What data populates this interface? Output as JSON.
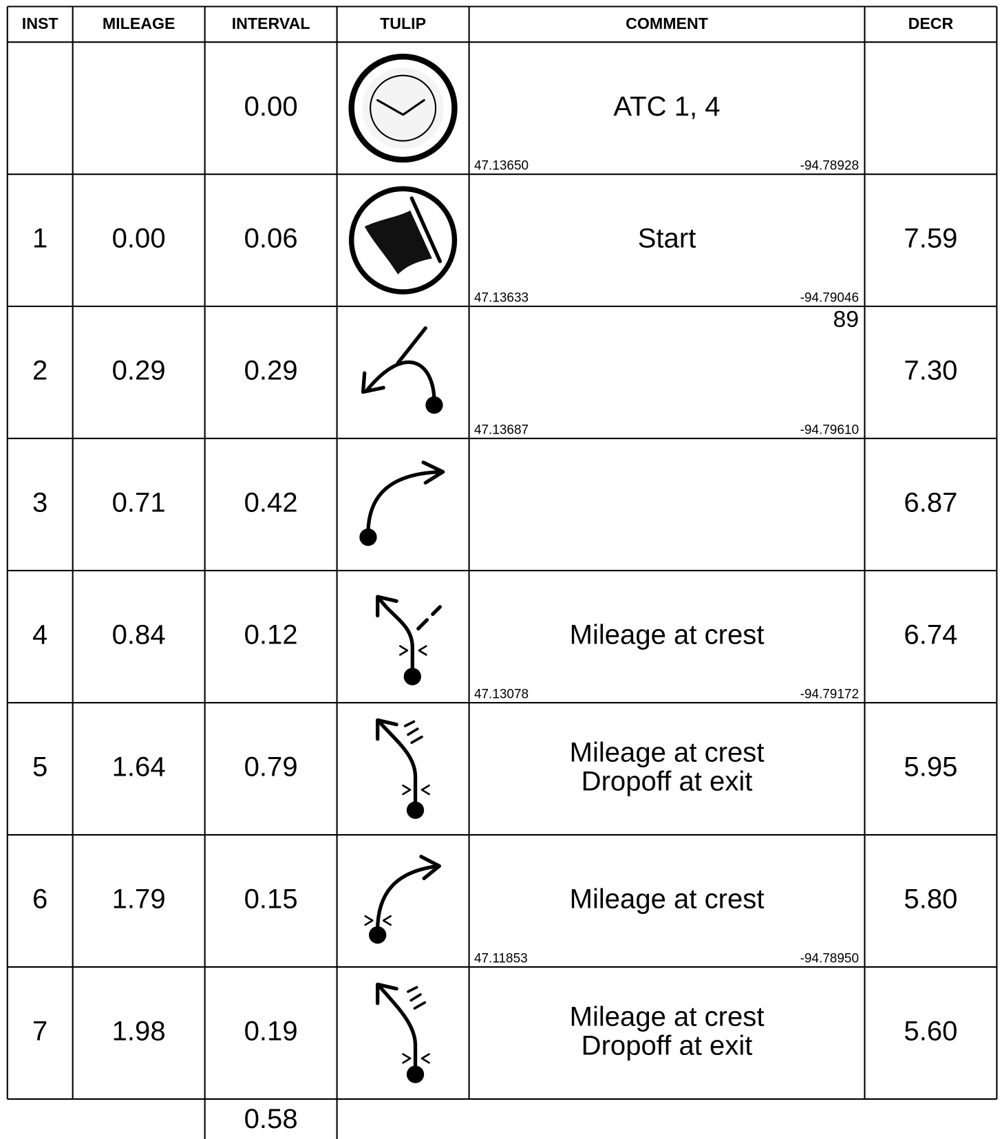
{
  "header": {
    "columns": [
      "INST",
      "MILEAGE",
      "INTERVAL",
      "TULIP",
      "COMMENT",
      "DECR"
    ]
  },
  "rows": [
    {
      "interval": "0.00",
      "comment": [
        "ATC 1, 4"
      ],
      "lat": "47.13650",
      "lon": "-94.78928"
    },
    {
      "inst": "1",
      "mileage": "0.00",
      "interval": "0.06",
      "comment": [
        "Start"
      ],
      "lat": "47.13633",
      "lon": "-94.79046",
      "decr": "7.59"
    },
    {
      "inst": "2",
      "mileage": "0.29",
      "interval": "0.29",
      "heading": "89",
      "lat": "47.13687",
      "lon": "-94.79610",
      "decr": "7.30"
    },
    {
      "inst": "3",
      "mileage": "0.71",
      "interval": "0.42",
      "decr": "6.87"
    },
    {
      "inst": "4",
      "mileage": "0.84",
      "interval": "0.12",
      "comment": [
        "Mileage at crest"
      ],
      "lat": "47.13078",
      "lon": "-94.79172",
      "decr": "6.74"
    },
    {
      "inst": "5",
      "mileage": "1.64",
      "interval": "0.79",
      "comment": [
        "Mileage at crest",
        "Dropoff at exit"
      ],
      "decr": "5.95"
    },
    {
      "inst": "6",
      "mileage": "1.79",
      "interval": "0.15",
      "comment": [
        "Mileage at crest"
      ],
      "lat": "47.11853",
      "lon": "-94.78950",
      "decr": "5.80"
    },
    {
      "inst": "7",
      "mileage": "1.98",
      "interval": "0.19",
      "comment": [
        "Mileage at crest",
        "Dropoff at exit"
      ],
      "decr": "5.60"
    }
  ],
  "footer": {
    "interval": "0.58"
  }
}
